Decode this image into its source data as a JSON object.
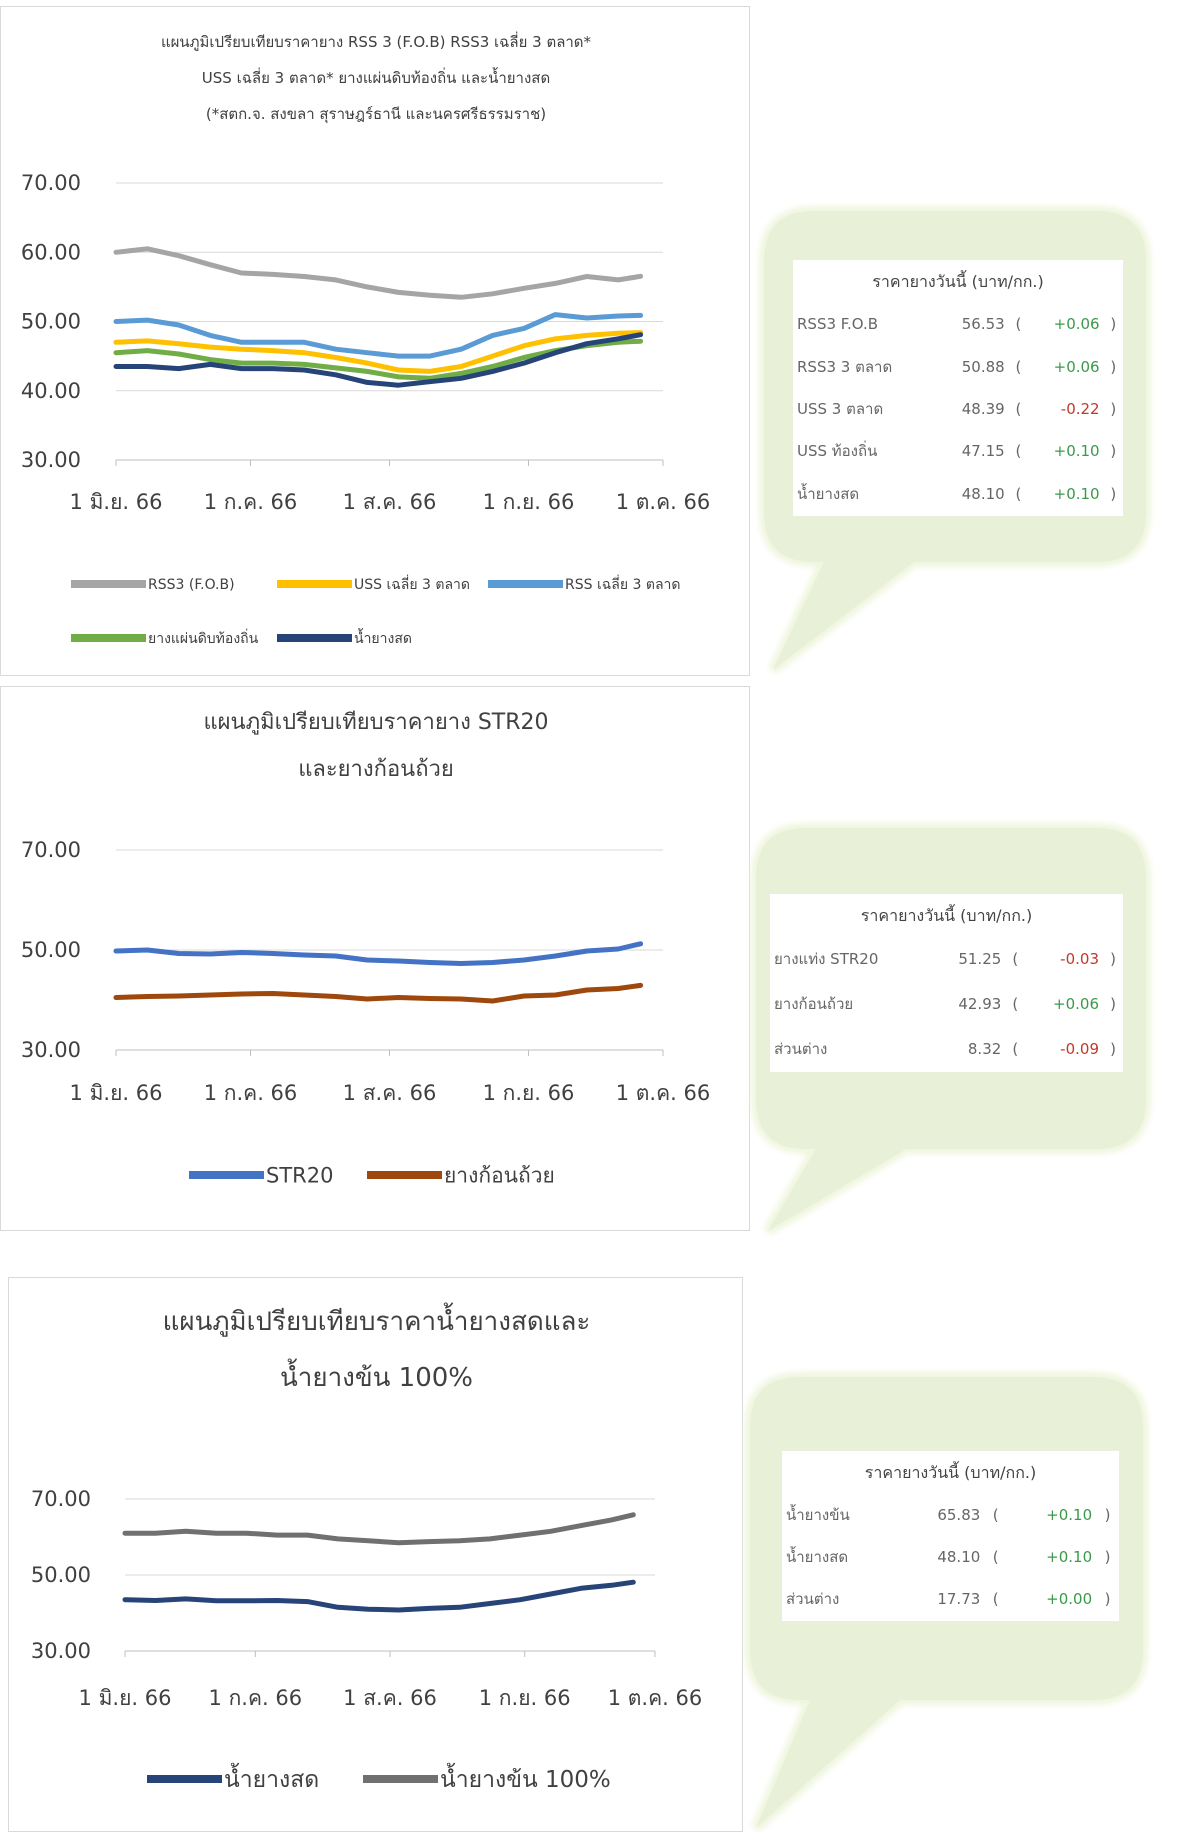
{
  "colors": {
    "rss3_fob": "#a5a5a5",
    "uss_3": "#ffc000",
    "rss_3": "#5b9bd5",
    "uss_local": "#70ad47",
    "latex": "#264478",
    "str20": "#4472c4",
    "cuplump": "#9e480e",
    "concentrated": "#707070",
    "positive": "#3a9a4a",
    "negative": "#c0392b",
    "callout": "#e8f1d8"
  },
  "chart_data": [
    {
      "type": "line",
      "title_lines": [
        "แผนภูมิเปรียบเทียบราคายาง RSS 3 (F.O.B) RSS3 เฉลี่ย 3 ตลาด*",
        "USS เฉลี่ย 3 ตลาด* ยางแผ่นดิบท้องถิ่น และน้ำยางสด",
        "(*สตก.จ. สงขลา สุราษฎร์ธานี และนครศรีธรรมราช)"
      ],
      "ylim": [
        30,
        70
      ],
      "yticks": [
        "70.00",
        "60.00",
        "50.00",
        "40.00",
        "30.00"
      ],
      "ytick_values": [
        70,
        60,
        50,
        40,
        30
      ],
      "xlim": [
        "2023-06-01",
        "2023-10-01"
      ],
      "xticks": [
        "1 มิ.ย. 66",
        "1 ก.ค. 66",
        "1 ส.ค. 66",
        "1 ก.ย. 66",
        "1 ต.ค. 66"
      ],
      "xtick_dates": [
        "2023-06-01",
        "2023-07-01",
        "2023-08-01",
        "2023-09-01",
        "2023-10-01"
      ],
      "legend": "bottom",
      "grid": true,
      "x": [
        "2023-06-01",
        "2023-06-08",
        "2023-06-15",
        "2023-06-22",
        "2023-06-29",
        "2023-07-06",
        "2023-07-13",
        "2023-07-20",
        "2023-07-27",
        "2023-08-03",
        "2023-08-10",
        "2023-08-17",
        "2023-08-24",
        "2023-08-31",
        "2023-09-07",
        "2023-09-14",
        "2023-09-21",
        "2023-09-26"
      ],
      "series": [
        {
          "name": "RSS3 (F.O.B)",
          "color_key": "rss3_fob",
          "values": [
            60,
            60.5,
            59.5,
            58.2,
            57,
            56.8,
            56.5,
            56,
            55,
            54.2,
            53.8,
            53.5,
            54,
            54.8,
            55.5,
            56.5,
            56,
            56.53
          ]
        },
        {
          "name": "USS เฉลี่ย 3 ตลาด",
          "color_key": "uss_3",
          "values": [
            47,
            47.2,
            46.8,
            46.3,
            46,
            45.8,
            45.5,
            44.8,
            44,
            43,
            42.8,
            43.5,
            45,
            46.5,
            47.5,
            48,
            48.3,
            48.39
          ]
        },
        {
          "name": "RSS เฉลี่ย 3 ตลาด",
          "color_key": "rss_3",
          "values": [
            50,
            50.2,
            49.5,
            48,
            47,
            47,
            47,
            46,
            45.5,
            45,
            45,
            46,
            48,
            49,
            51,
            50.5,
            50.8,
            50.88
          ]
        },
        {
          "name": "ยางแผ่นดิบท้องถิ่น",
          "color_key": "uss_local",
          "values": [
            45.5,
            45.8,
            45.3,
            44.5,
            44,
            44,
            43.8,
            43.3,
            42.8,
            42,
            41.8,
            42.5,
            43.5,
            44.8,
            45.8,
            46.5,
            47,
            47.15
          ]
        },
        {
          "name": "น้ำยางสด",
          "color_key": "latex",
          "values": [
            43.5,
            43.5,
            43.2,
            43.8,
            43.2,
            43.2,
            43,
            42.3,
            41.2,
            40.8,
            41.3,
            41.8,
            42.8,
            44,
            45.5,
            46.8,
            47.5,
            48.1
          ]
        }
      ]
    },
    {
      "type": "line",
      "title_lines": [
        "แผนภูมิเปรียบเทียบราคายาง STR20",
        "และยางก้อนถ้วย"
      ],
      "ylim": [
        30,
        70
      ],
      "yticks": [
        "70.00",
        "50.00",
        "30.00"
      ],
      "ytick_values": [
        70,
        50,
        30
      ],
      "xlim": [
        "2023-06-01",
        "2023-10-01"
      ],
      "xticks": [
        "1 มิ.ย. 66",
        "1 ก.ค. 66",
        "1 ส.ค. 66",
        "1 ก.ย. 66",
        "1 ต.ค. 66"
      ],
      "xtick_dates": [
        "2023-06-01",
        "2023-07-01",
        "2023-08-01",
        "2023-09-01",
        "2023-10-01"
      ],
      "legend": "bottom",
      "grid": true,
      "x": [
        "2023-06-01",
        "2023-06-08",
        "2023-06-15",
        "2023-06-22",
        "2023-06-29",
        "2023-07-06",
        "2023-07-13",
        "2023-07-20",
        "2023-07-27",
        "2023-08-03",
        "2023-08-10",
        "2023-08-17",
        "2023-08-24",
        "2023-08-31",
        "2023-09-07",
        "2023-09-14",
        "2023-09-21",
        "2023-09-26"
      ],
      "series": [
        {
          "name": "STR20",
          "color_key": "str20",
          "values": [
            49.8,
            50,
            49.3,
            49.2,
            49.5,
            49.3,
            49,
            48.8,
            48,
            47.8,
            47.5,
            47.3,
            47.5,
            48,
            48.8,
            49.8,
            50.2,
            51.25
          ]
        },
        {
          "name": "ยางก้อนถ้วย",
          "color_key": "cuplump",
          "values": [
            40.5,
            40.7,
            40.8,
            41,
            41.2,
            41.3,
            41,
            40.7,
            40.2,
            40.5,
            40.3,
            40.2,
            39.8,
            40.8,
            41,
            42,
            42.3,
            42.93
          ]
        }
      ]
    },
    {
      "type": "line",
      "title_lines": [
        "แผนภูมิเปรียบเทียบราคาน้ำยางสดและ",
        "น้ำยางข้น 100%"
      ],
      "ylim": [
        30,
        70
      ],
      "yticks": [
        "70.00",
        "50.00",
        "30.00"
      ],
      "ytick_values": [
        70,
        50,
        30
      ],
      "xlim": [
        "2023-06-01",
        "2023-10-01"
      ],
      "xticks": [
        "1 มิ.ย. 66",
        "1 ก.ค. 66",
        "1 ส.ค. 66",
        "1 ก.ย. 66",
        "1 ต.ค. 66"
      ],
      "xtick_dates": [
        "2023-06-01",
        "2023-07-01",
        "2023-08-01",
        "2023-09-01",
        "2023-10-01"
      ],
      "legend": "bottom",
      "grid": true,
      "x": [
        "2023-06-01",
        "2023-06-08",
        "2023-06-15",
        "2023-06-22",
        "2023-06-29",
        "2023-07-06",
        "2023-07-13",
        "2023-07-20",
        "2023-07-27",
        "2023-08-03",
        "2023-08-10",
        "2023-08-17",
        "2023-08-24",
        "2023-08-31",
        "2023-09-07",
        "2023-09-14",
        "2023-09-21",
        "2023-09-26"
      ],
      "series": [
        {
          "name": "น้ำยางสด",
          "color_key": "latex",
          "values": [
            43.5,
            43.3,
            43.7,
            43.2,
            43.2,
            43.3,
            43,
            41.5,
            41,
            40.8,
            41.2,
            41.5,
            42.5,
            43.5,
            45,
            46.5,
            47.3,
            48.1
          ]
        },
        {
          "name": "น้ำยางข้น 100%",
          "color_key": "concentrated",
          "values": [
            61,
            61,
            61.5,
            61,
            61,
            60.5,
            60.5,
            59.5,
            59,
            58.5,
            58.8,
            59,
            59.5,
            60.5,
            61.5,
            63,
            64.5,
            65.83
          ]
        }
      ]
    }
  ],
  "price_tables": [
    {
      "title": "ราคายางวันนี้ (บาท/กก.)",
      "rows": [
        {
          "label": "RSS3 F.O.B",
          "price": "56.53",
          "change": "+0.06",
          "dir": "pos"
        },
        {
          "label": "RSS3 3 ตลาด",
          "price": "50.88",
          "change": "+0.06",
          "dir": "pos"
        },
        {
          "label": "USS 3 ตลาด",
          "price": "48.39",
          "change": "-0.22",
          "dir": "neg"
        },
        {
          "label": "USS ท้องถิ่น",
          "price": "47.15",
          "change": "+0.10",
          "dir": "pos"
        },
        {
          "label": "น้ำยางสด",
          "price": "48.10",
          "change": "+0.10",
          "dir": "pos"
        }
      ]
    },
    {
      "title": "ราคายางวันนี้ (บาท/กก.)",
      "rows": [
        {
          "label": "ยางแท่ง STR20",
          "price": "51.25",
          "change": "-0.03",
          "dir": "neg"
        },
        {
          "label": "ยางก้อนถ้วย",
          "price": "42.93",
          "change": "+0.06",
          "dir": "pos"
        },
        {
          "label": "ส่วนต่าง",
          "price": "8.32",
          "change": "-0.09",
          "dir": "neg"
        }
      ]
    },
    {
      "title": "ราคายางวันนี้ (บาท/กก.)",
      "rows": [
        {
          "label": "น้ำยางข้น",
          "price": "65.83",
          "change": "+0.10",
          "dir": "pos"
        },
        {
          "label": "น้ำยางสด",
          "price": "48.10",
          "change": "+0.10",
          "dir": "pos"
        },
        {
          "label": "ส่วนต่าง",
          "price": "17.73",
          "change": "+0.00",
          "dir": "pos"
        }
      ]
    }
  ]
}
